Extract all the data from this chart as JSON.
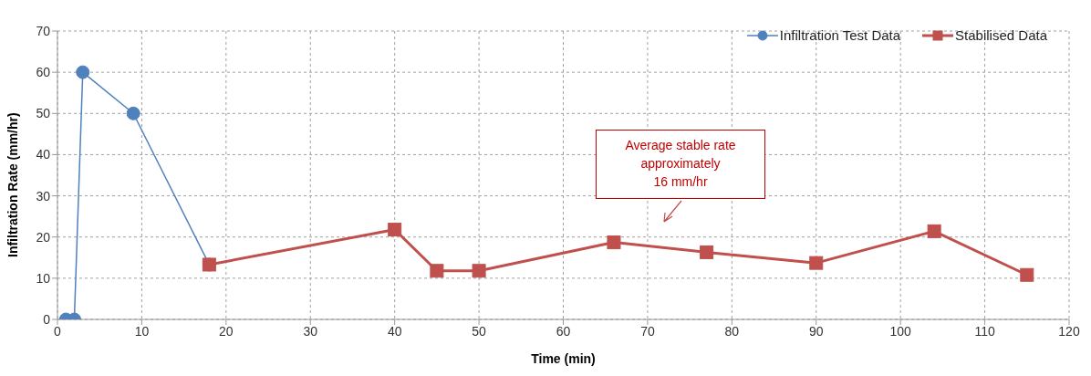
{
  "chart_data": {
    "type": "line",
    "xlabel": "Time (min)",
    "ylabel": "Infiltration Rate (mm/hr)",
    "xlim": [
      0,
      120
    ],
    "xticks": [
      0,
      10,
      20,
      30,
      40,
      50,
      60,
      70,
      80,
      90,
      100,
      110,
      120
    ],
    "ylim": [
      0,
      70
    ],
    "yticks": [
      0,
      10,
      20,
      30,
      40,
      50,
      60,
      70
    ],
    "grid": true,
    "legend": "top right",
    "series": [
      {
        "name": "Infiltration Test Data",
        "color": "#4f81bd",
        "marker": "circle",
        "x": [
          1,
          2,
          3,
          9,
          18
        ],
        "values": [
          0,
          0,
          60,
          50,
          13.3
        ]
      },
      {
        "name": "Stabilised Data",
        "color": "#c0504d",
        "marker": "square",
        "x": [
          18,
          40,
          45,
          50,
          66,
          77,
          90,
          104,
          115
        ],
        "values": [
          13.3,
          21.8,
          11.8,
          11.8,
          18.7,
          16.3,
          13.7,
          21.4,
          10.8
        ]
      }
    ],
    "annotations": [
      "Average stable rate\napproximately\n16 mm/hr"
    ]
  }
}
